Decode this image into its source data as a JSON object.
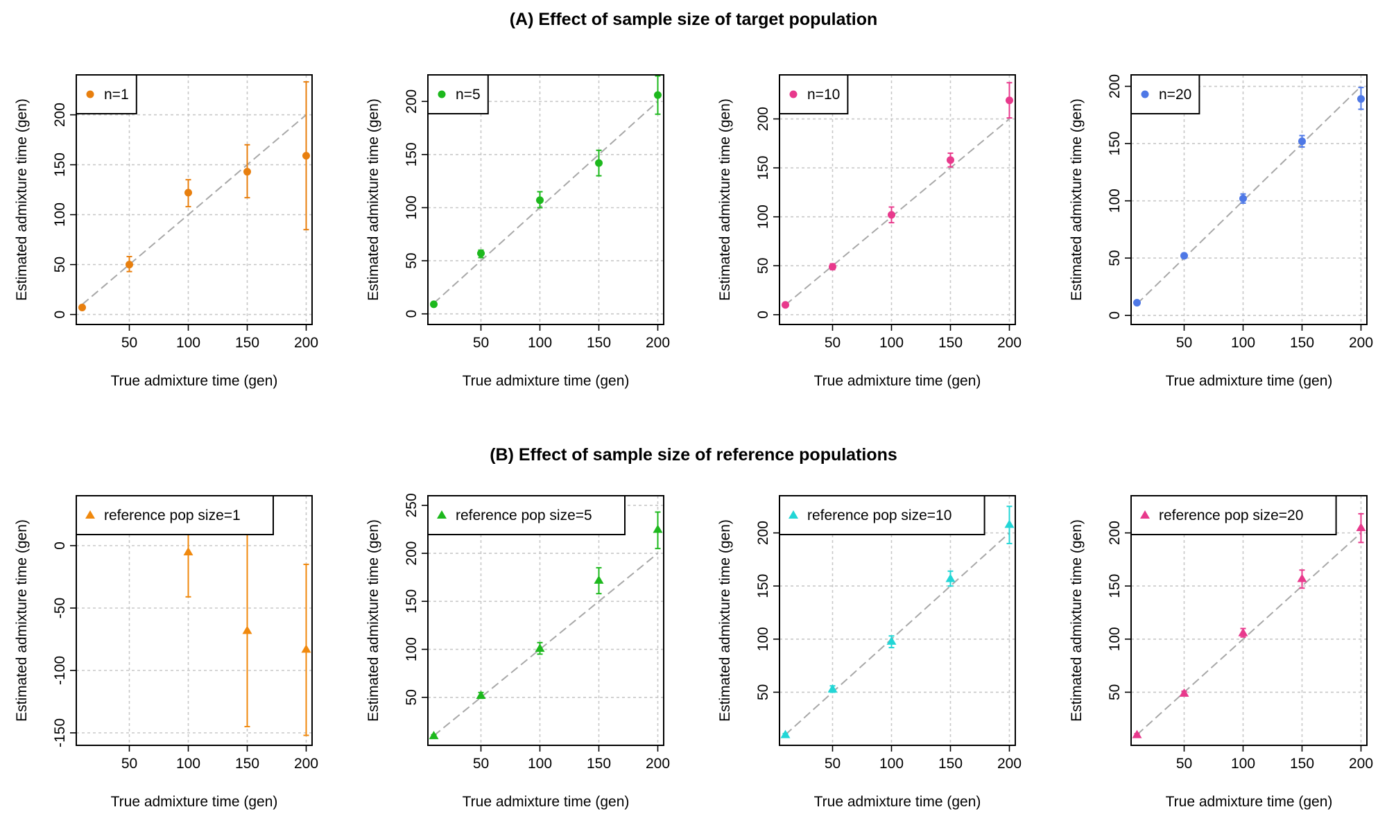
{
  "sections": {
    "a_title": "(A) Effect of sample size of target population",
    "b_title": "(B) Effect of sample size of reference populations"
  },
  "chart_data": [
    {
      "type": "scatter",
      "panel": "A1",
      "marker": "circle",
      "color": "#E87F0E",
      "legend": "n=1",
      "xlabel": "True admixture time (gen)",
      "ylabel": "Estimated admixture time (gen)",
      "xlim": [
        5,
        205
      ],
      "ylim": [
        -10,
        240
      ],
      "xticks": [
        50,
        100,
        150,
        200
      ],
      "yticks": [
        0,
        50,
        100,
        150,
        200
      ],
      "grid": true,
      "legend_position": "top-left",
      "reference_line": "y = x",
      "points": [
        {
          "x": 10,
          "y": 7,
          "lo": 6,
          "hi": 9
        },
        {
          "x": 50,
          "y": 50,
          "lo": 43,
          "hi": 58
        },
        {
          "x": 100,
          "y": 122,
          "lo": 108,
          "hi": 135
        },
        {
          "x": 150,
          "y": 143,
          "lo": 117,
          "hi": 170
        },
        {
          "x": 200,
          "y": 159,
          "lo": 85,
          "hi": 233
        }
      ]
    },
    {
      "type": "scatter",
      "panel": "A2",
      "marker": "circle",
      "color": "#1DB81D",
      "legend": "n=5",
      "xlabel": "True admixture time (gen)",
      "ylabel": "Estimated admixture time (gen)",
      "xlim": [
        5,
        205
      ],
      "ylim": [
        -10,
        225
      ],
      "xticks": [
        50,
        100,
        150,
        200
      ],
      "yticks": [
        0,
        50,
        100,
        150,
        200
      ],
      "grid": true,
      "legend_position": "top-left",
      "reference_line": "y = x",
      "points": [
        {
          "x": 10,
          "y": 9,
          "lo": 8,
          "hi": 10
        },
        {
          "x": 50,
          "y": 57,
          "lo": 53,
          "hi": 60
        },
        {
          "x": 100,
          "y": 107,
          "lo": 100,
          "hi": 115
        },
        {
          "x": 150,
          "y": 142,
          "lo": 130,
          "hi": 154
        },
        {
          "x": 200,
          "y": 206,
          "lo": 188,
          "hi": 224
        }
      ]
    },
    {
      "type": "scatter",
      "panel": "A3",
      "marker": "circle",
      "color": "#E8398C",
      "legend": "n=10",
      "xlabel": "True admixture time (gen)",
      "ylabel": "Estimated admixture time (gen)",
      "xlim": [
        5,
        205
      ],
      "ylim": [
        -10,
        245
      ],
      "xticks": [
        50,
        100,
        150,
        200
      ],
      "yticks": [
        0,
        50,
        100,
        150,
        200
      ],
      "grid": true,
      "legend_position": "top-left",
      "reference_line": "y = x",
      "points": [
        {
          "x": 10,
          "y": 10,
          "lo": 9,
          "hi": 11
        },
        {
          "x": 50,
          "y": 49,
          "lo": 46,
          "hi": 52
        },
        {
          "x": 100,
          "y": 102,
          "lo": 94,
          "hi": 110
        },
        {
          "x": 150,
          "y": 158,
          "lo": 151,
          "hi": 165
        },
        {
          "x": 200,
          "y": 219,
          "lo": 201,
          "hi": 237
        }
      ]
    },
    {
      "type": "scatter",
      "panel": "A4",
      "marker": "circle",
      "color": "#4E78E6",
      "legend": "n=20",
      "xlabel": "True admixture time (gen)",
      "ylabel": "Estimated admixture time (gen)",
      "xlim": [
        5,
        205
      ],
      "ylim": [
        -8,
        210
      ],
      "xticks": [
        50,
        100,
        150,
        200
      ],
      "yticks": [
        0,
        50,
        100,
        150,
        200
      ],
      "grid": true,
      "legend_position": "top-left",
      "reference_line": "y = x",
      "points": [
        {
          "x": 10,
          "y": 11,
          "lo": 10,
          "hi": 12
        },
        {
          "x": 50,
          "y": 52,
          "lo": 50,
          "hi": 54
        },
        {
          "x": 100,
          "y": 102,
          "lo": 98,
          "hi": 106
        },
        {
          "x": 150,
          "y": 152,
          "lo": 147,
          "hi": 157
        },
        {
          "x": 200,
          "y": 189,
          "lo": 180,
          "hi": 199
        }
      ]
    },
    {
      "type": "scatter",
      "panel": "B1",
      "marker": "triangle",
      "color": "#F0890E",
      "legend": "reference pop size=1",
      "xlabel": "True admixture time (gen)",
      "ylabel": "Estimated admixture time (gen)",
      "xlim": [
        5,
        205
      ],
      "ylim": [
        -160,
        40
      ],
      "xticks": [
        50,
        100,
        150,
        200
      ],
      "yticks": [
        -150,
        -100,
        -50,
        0
      ],
      "grid": true,
      "legend_position": "top-left",
      "reference_line": "y = x",
      "points": [
        {
          "x": 10,
          "y": 13,
          "lo": 12,
          "hi": 14
        },
        {
          "x": 50,
          "y": 40,
          "lo": 38,
          "hi": 42
        },
        {
          "x": 100,
          "y": -5,
          "lo": -41,
          "hi": 31
        },
        {
          "x": 150,
          "y": -68,
          "lo": -145,
          "hi": 10
        },
        {
          "x": 200,
          "y": -83,
          "lo": -152,
          "hi": -15
        }
      ]
    },
    {
      "type": "scatter",
      "panel": "B2",
      "marker": "triangle",
      "color": "#1DB81D",
      "legend": "reference pop size=5",
      "xlabel": "True admixture time (gen)",
      "ylabel": "Estimated admixture time (gen)",
      "xlim": [
        5,
        205
      ],
      "ylim": [
        0,
        260
      ],
      "xticks": [
        50,
        100,
        150,
        200
      ],
      "yticks": [
        50,
        100,
        150,
        200,
        250
      ],
      "grid": true,
      "legend_position": "top-left",
      "reference_line": "y = x",
      "points": [
        {
          "x": 10,
          "y": 10,
          "lo": 9,
          "hi": 11
        },
        {
          "x": 50,
          "y": 52,
          "lo": 49,
          "hi": 55
        },
        {
          "x": 100,
          "y": 101,
          "lo": 95,
          "hi": 107
        },
        {
          "x": 150,
          "y": 172,
          "lo": 158,
          "hi": 185
        },
        {
          "x": 200,
          "y": 225,
          "lo": 205,
          "hi": 243
        }
      ]
    },
    {
      "type": "scatter",
      "panel": "B3",
      "marker": "triangle",
      "color": "#22D6D6",
      "legend": "reference pop size=10",
      "xlabel": "True admixture time (gen)",
      "ylabel": "Estimated admixture time (gen)",
      "xlim": [
        5,
        205
      ],
      "ylim": [
        0,
        235
      ],
      "xticks": [
        50,
        100,
        150,
        200
      ],
      "yticks": [
        50,
        100,
        150,
        200
      ],
      "grid": true,
      "legend_position": "top-left",
      "reference_line": "y = x",
      "points": [
        {
          "x": 10,
          "y": 10,
          "lo": 9,
          "hi": 11
        },
        {
          "x": 50,
          "y": 53,
          "lo": 50,
          "hi": 56
        },
        {
          "x": 100,
          "y": 98,
          "lo": 92,
          "hi": 103
        },
        {
          "x": 150,
          "y": 157,
          "lo": 150,
          "hi": 164
        },
        {
          "x": 200,
          "y": 208,
          "lo": 190,
          "hi": 225
        }
      ]
    },
    {
      "type": "scatter",
      "panel": "B4",
      "marker": "triangle",
      "color": "#E8398C",
      "legend": "reference pop size=20",
      "xlabel": "True admixture time (gen)",
      "ylabel": "Estimated admixture time (gen)",
      "xlim": [
        5,
        205
      ],
      "ylim": [
        0,
        235
      ],
      "xticks": [
        50,
        100,
        150,
        200
      ],
      "yticks": [
        50,
        100,
        150,
        200
      ],
      "grid": true,
      "legend_position": "top-left",
      "reference_line": "y = x",
      "points": [
        {
          "x": 10,
          "y": 10,
          "lo": 9,
          "hi": 11
        },
        {
          "x": 50,
          "y": 49,
          "lo": 47,
          "hi": 51
        },
        {
          "x": 100,
          "y": 106,
          "lo": 102,
          "hi": 110
        },
        {
          "x": 150,
          "y": 157,
          "lo": 148,
          "hi": 165
        },
        {
          "x": 200,
          "y": 205,
          "lo": 191,
          "hi": 218
        }
      ]
    }
  ]
}
